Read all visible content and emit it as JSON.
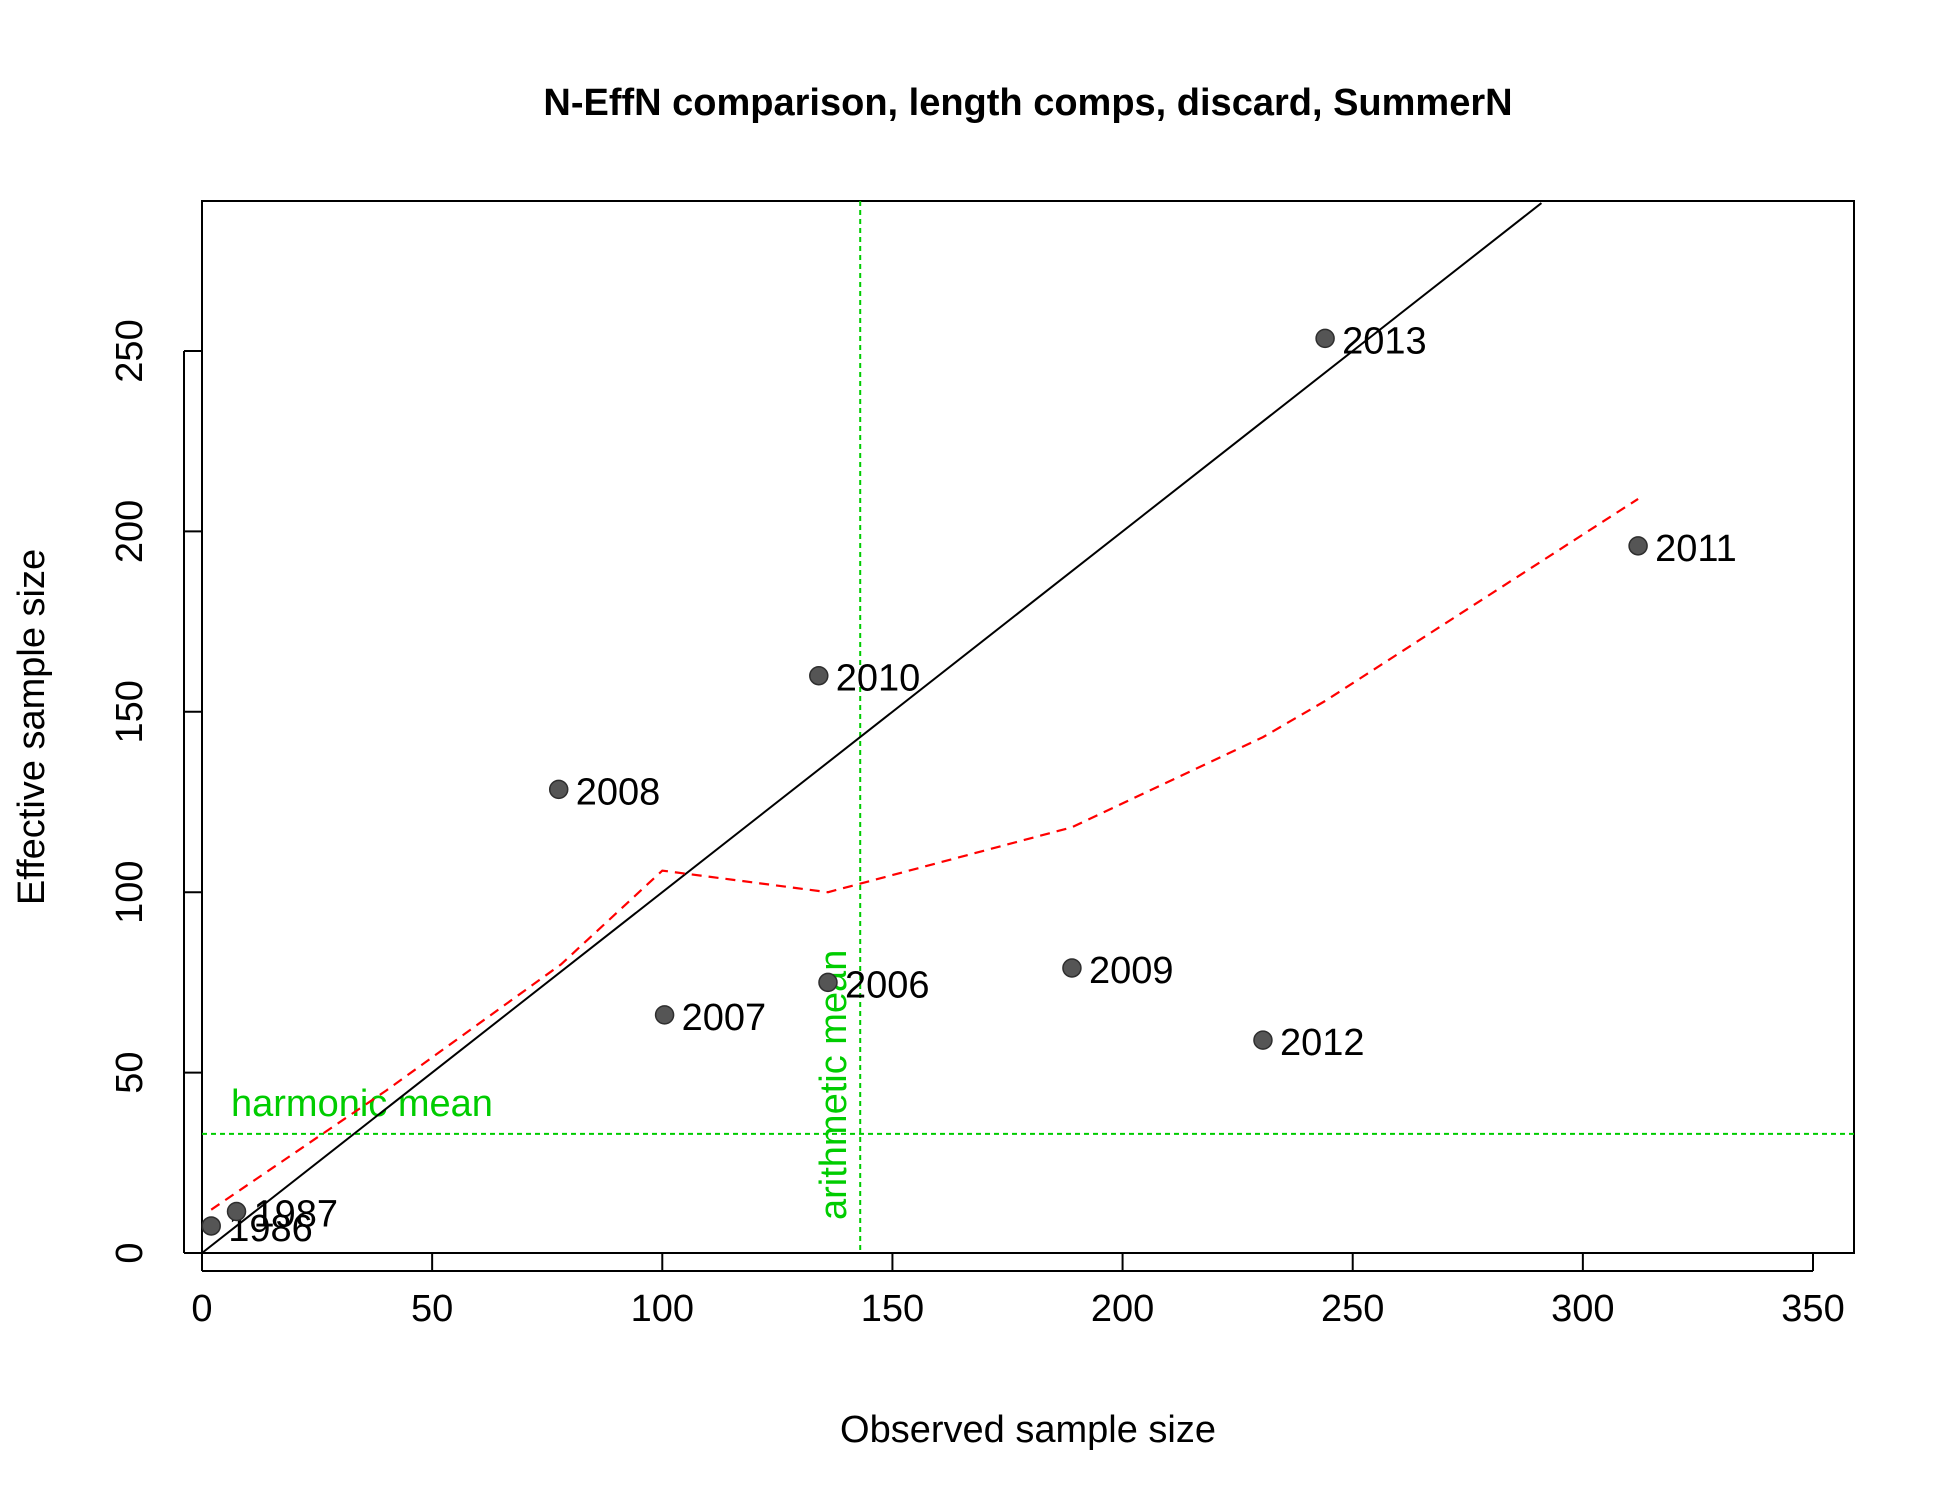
{
  "chart_data": {
    "type": "scatter",
    "title": "N-EffN comparison, length comps, discard, SummerN",
    "xlabel": "Observed sample size",
    "ylabel": "Effective sample size",
    "xlim": [
      0,
      358
    ],
    "ylim": [
      0,
      291
    ],
    "x_ticks": [
      0,
      50,
      100,
      150,
      200,
      250,
      300,
      350
    ],
    "y_ticks": [
      0,
      50,
      100,
      150,
      200,
      250
    ],
    "grid": false,
    "points": [
      {
        "label": "1986",
        "x": 2,
        "y": 7.5
      },
      {
        "label": "1987",
        "x": 7.5,
        "y": 11.5
      },
      {
        "label": "2006",
        "x": 136,
        "y": 75
      },
      {
        "label": "2007",
        "x": 100.5,
        "y": 66
      },
      {
        "label": "2008",
        "x": 77.5,
        "y": 128.5
      },
      {
        "label": "2009",
        "x": 189,
        "y": 79
      },
      {
        "label": "2010",
        "x": 134,
        "y": 160
      },
      {
        "label": "2011",
        "x": 312,
        "y": 196
      },
      {
        "label": "2012",
        "x": 230.5,
        "y": 59
      },
      {
        "label": "2013",
        "x": 244,
        "y": 253.5
      }
    ],
    "identity_line": {
      "from": [
        0,
        0
      ],
      "to": [
        291,
        291
      ]
    },
    "smoother": {
      "style": "dashed",
      "color": "#ff0000",
      "points": [
        [
          2,
          12
        ],
        [
          40,
          45
        ],
        [
          78,
          80
        ],
        [
          100,
          106
        ],
        [
          136,
          100
        ],
        [
          189,
          118
        ],
        [
          230.5,
          143
        ],
        [
          244,
          153
        ],
        [
          312,
          209
        ]
      ]
    },
    "reference_lines": [
      {
        "orientation": "vertical",
        "value": 143,
        "label": "arithmetic mean",
        "color": "#00cc00"
      },
      {
        "orientation": "horizontal",
        "value": 33,
        "label": "harmonic mean",
        "color": "#00cc00"
      }
    ],
    "colors": {
      "point": "#555555",
      "identity_line": "#000000",
      "smoother": "#ff0000",
      "reference": "#00cc00"
    }
  }
}
